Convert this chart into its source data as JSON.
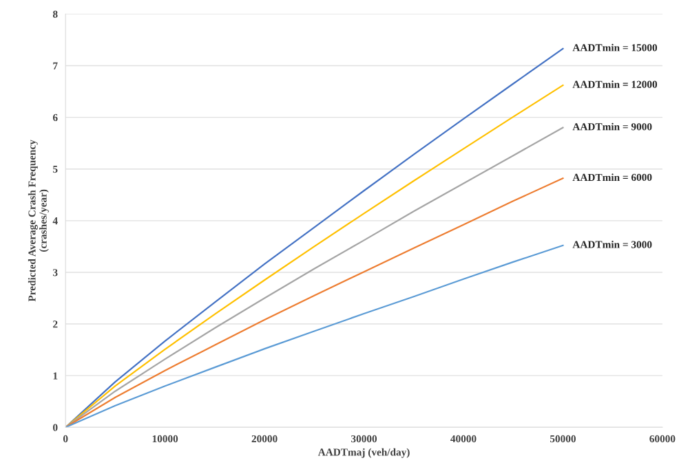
{
  "chart_data": {
    "type": "line",
    "xlabel": "AADTmaj (veh/day)",
    "ylabel": "Predicted Average Crash Frequency\n(crashes/year)",
    "x": [
      0,
      5000,
      10000,
      15000,
      20000,
      25000,
      30000,
      35000,
      40000,
      45000,
      50000
    ],
    "series": [
      {
        "name": "AADTmin = 15000",
        "color": "#4472c4",
        "values": [
          0,
          0.88,
          1.67,
          2.42,
          3.16,
          3.87,
          4.58,
          5.28,
          5.97,
          6.65,
          7.33
        ]
      },
      {
        "name": "AADTmin = 12000",
        "color": "#ffc000",
        "values": [
          0,
          0.8,
          1.51,
          2.19,
          2.85,
          3.5,
          4.14,
          4.77,
          5.39,
          6.01,
          6.62
        ]
      },
      {
        "name": "AADTmin = 9000",
        "color": "#a5a5a5",
        "values": [
          0,
          0.7,
          1.32,
          1.92,
          2.5,
          3.07,
          3.62,
          4.18,
          4.72,
          5.26,
          5.8
        ]
      },
      {
        "name": "AADTmin = 6000",
        "color": "#ed7d31",
        "values": [
          0,
          0.58,
          1.1,
          1.59,
          2.08,
          2.55,
          3.01,
          3.47,
          3.92,
          4.38,
          4.82
        ]
      },
      {
        "name": "AADTmin = 3000",
        "color": "#5b9bd5",
        "values": [
          0,
          0.42,
          0.8,
          1.16,
          1.52,
          1.86,
          2.2,
          2.53,
          2.87,
          3.2,
          3.52
        ]
      }
    ],
    "xlim": [
      0,
      60000
    ],
    "xticks": [
      0,
      10000,
      20000,
      30000,
      40000,
      50000,
      60000
    ],
    "ylim": [
      0,
      8
    ],
    "yticks": [
      0,
      1,
      2,
      3,
      4,
      5,
      6,
      7,
      8
    ],
    "grid": "y",
    "legend": false,
    "marker": "none",
    "line_style": "solid"
  }
}
